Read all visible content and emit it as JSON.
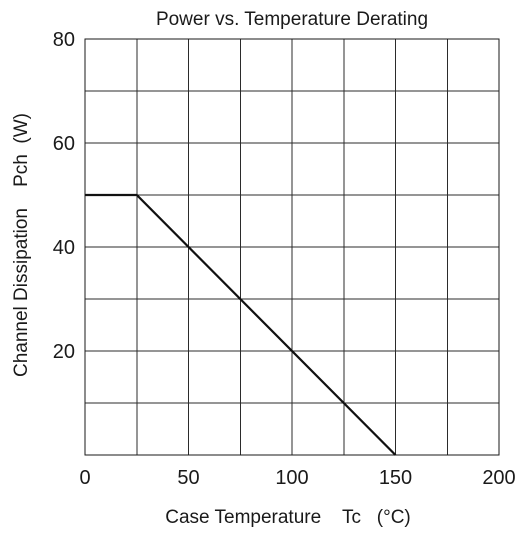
{
  "chart_data": {
    "type": "line",
    "title": "Power vs. Temperature Derating",
    "xlabel": "Case Temperature    Tc   (°C)",
    "ylabel": "Channel Dissipation    Pch  (W)",
    "xlim": [
      0,
      200
    ],
    "ylim": [
      0,
      80
    ],
    "x_ticks": [
      0,
      25,
      50,
      75,
      100,
      125,
      150,
      175,
      200
    ],
    "x_tick_labels": [
      "0",
      "",
      "50",
      "",
      "100",
      "",
      "150",
      "",
      "200"
    ],
    "y_ticks": [
      0,
      10,
      20,
      30,
      40,
      50,
      60,
      70,
      80
    ],
    "y_tick_labels": [
      "",
      "",
      "20",
      "",
      "40",
      "",
      "60",
      "",
      "80"
    ],
    "grid": true,
    "series": [
      {
        "x": [
          0,
          25,
          150
        ],
        "y": [
          50,
          50,
          0
        ]
      }
    ]
  }
}
